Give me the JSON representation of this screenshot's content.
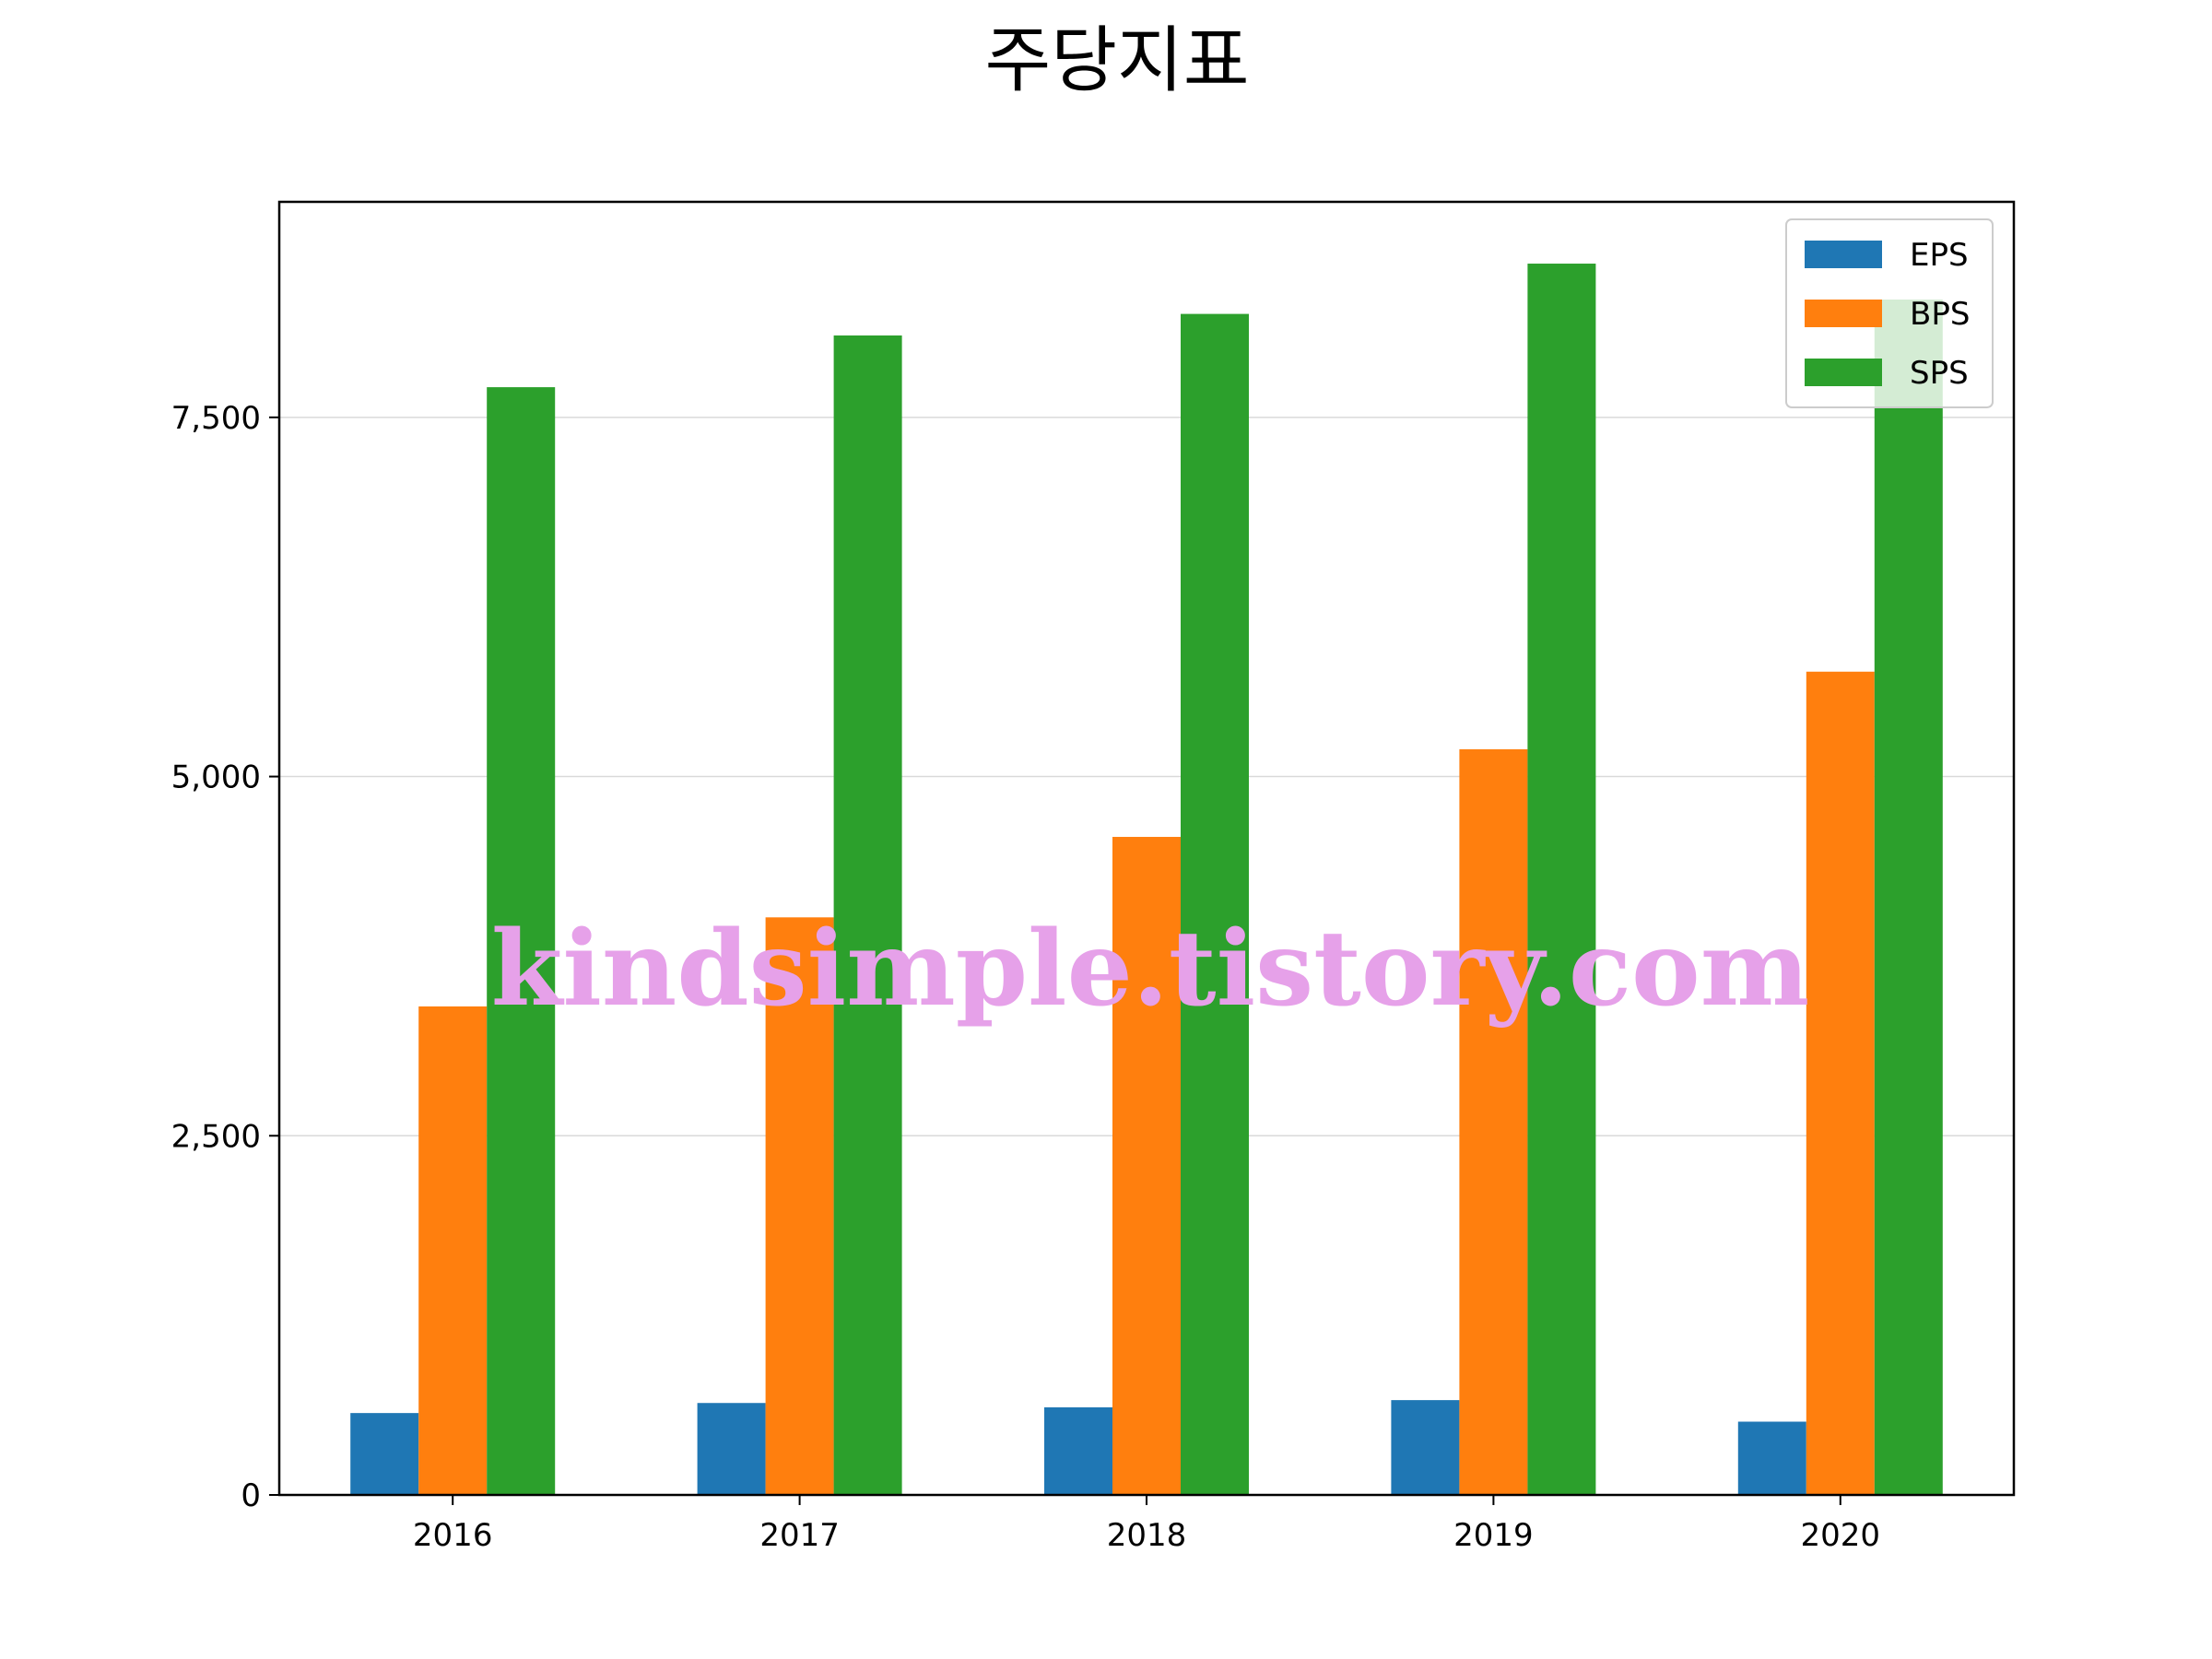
{
  "chart_data": {
    "type": "bar",
    "title": "주당지표",
    "xlabel": "",
    "ylabel": "",
    "categories": [
      "2016",
      "2017",
      "2018",
      "2019",
      "2020"
    ],
    "series": [
      {
        "name": "EPS",
        "color": "#1f77b4",
        "values": [
          570,
          640,
          610,
          660,
          510
        ]
      },
      {
        "name": "BPS",
        "color": "#ff7f0e",
        "values": [
          3400,
          4020,
          4580,
          5190,
          5730
        ]
      },
      {
        "name": "SPS",
        "color": "#2ca02c",
        "values": [
          7710,
          8070,
          8220,
          8570,
          8320
        ]
      }
    ],
    "ylim": [
      0,
      9000
    ],
    "yticks": [
      0,
      2500,
      5000,
      7500
    ],
    "ytick_labels": [
      "0",
      "2,500",
      "5,000",
      "7,500"
    ],
    "grid": "y",
    "legend_position": "top-right"
  },
  "watermark": "kindsimple.tistory.com"
}
